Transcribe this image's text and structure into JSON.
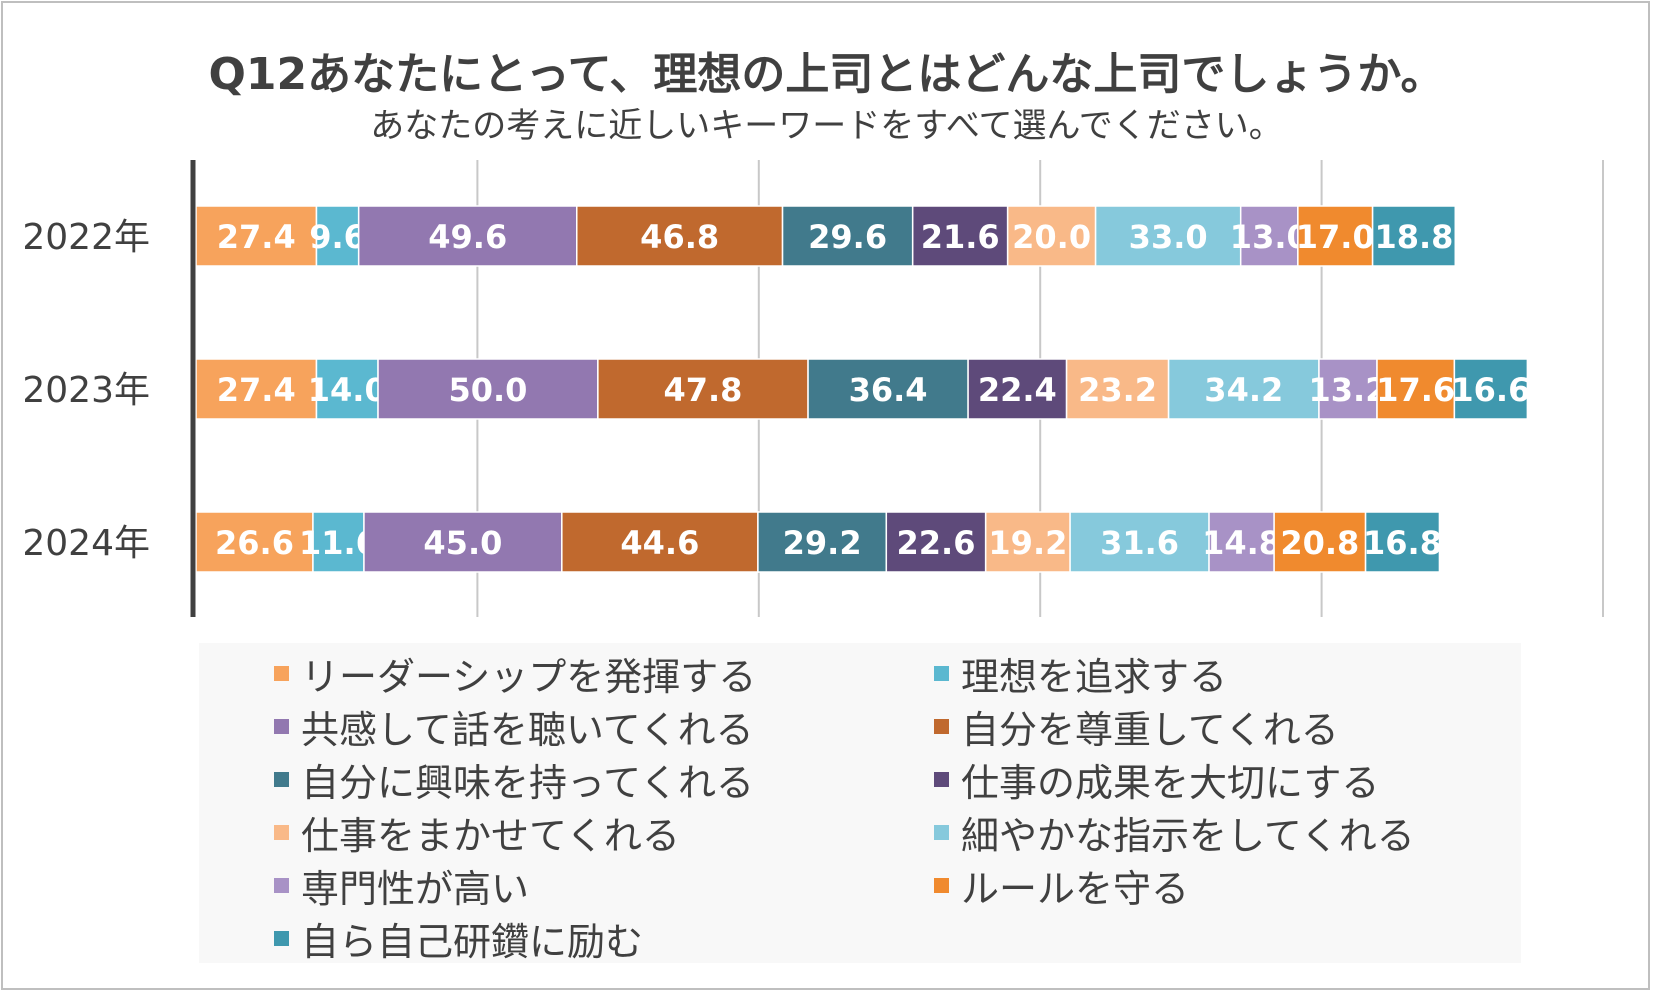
{
  "title": {
    "line1": "Q12あなたにとって、理想の上司とはどんな上司でしょうか。",
    "line2": "あなたの考えに近しいキーワードをすべて選んでください。"
  },
  "chart_data": {
    "type": "bar",
    "orientation": "horizontal",
    "stacked": true,
    "title": "Q12あなたにとって、理想の上司とはどんな上司でしょうか。",
    "subtitle": "あなたの考えに近しいキーワードをすべて選んでください。",
    "categories": [
      "2022年",
      "2023年",
      "2024年"
    ],
    "xlim": [
      0,
      320
    ],
    "grid": true,
    "legend_position": "bottom",
    "series": [
      {
        "name": "リーダーシップを発揮する",
        "color": "#F7A35C",
        "values": [
          27.4,
          27.4,
          26.6
        ]
      },
      {
        "name": "理想を追求する",
        "color": "#5BB8D0",
        "values": [
          9.6,
          14.0,
          11.6
        ]
      },
      {
        "name": "共感して話を聴いてくれる",
        "color": "#9278B0",
        "values": [
          49.6,
          50.0,
          45.0
        ]
      },
      {
        "name": "自分を尊重してくれる",
        "color": "#C0692E",
        "values": [
          46.8,
          47.8,
          44.6
        ]
      },
      {
        "name": "自分に興味を持ってくれる",
        "color": "#417A8C",
        "values": [
          29.6,
          36.4,
          29.2
        ]
      },
      {
        "name": "仕事の成果を大切にする",
        "color": "#5E4A7A",
        "values": [
          21.6,
          22.4,
          22.6
        ]
      },
      {
        "name": "仕事をまかせてくれる",
        "color": "#F9B988",
        "values": [
          20.0,
          23.2,
          19.2
        ]
      },
      {
        "name": "細やかな指示をしてくれる",
        "color": "#86C9DC",
        "values": [
          33.0,
          34.2,
          31.6
        ]
      },
      {
        "name": "専門性が高い",
        "color": "#A892C6",
        "values": [
          13.0,
          13.2,
          14.8
        ]
      },
      {
        "name": "ルールを守る",
        "color": "#F08A2E",
        "values": [
          17.0,
          17.6,
          20.8
        ]
      },
      {
        "name": "自ら自己研鑽に励む",
        "color": "#3F98AE",
        "values": [
          18.8,
          16.6,
          16.8
        ]
      }
    ]
  }
}
